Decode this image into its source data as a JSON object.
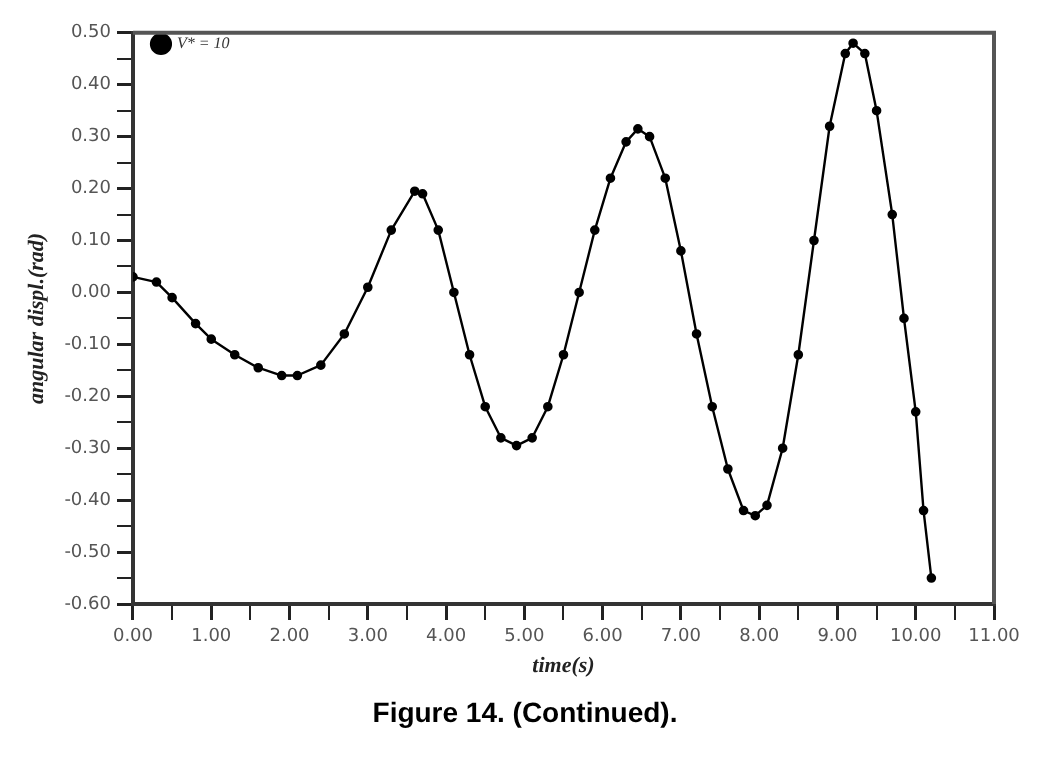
{
  "chart_data": {
    "type": "line",
    "xlabel": "time(s)",
    "ylabel": "angular displ.(rad)",
    "annotations": [
      "Figure 14. (Continued)."
    ],
    "series": [
      {
        "name": "V* = 10",
        "color": "#000000",
        "x": [
          0,
          0.3,
          0.5,
          0.8,
          1.0,
          1.3,
          1.6,
          1.9,
          2.1,
          2.4,
          2.7,
          3.0,
          3.3,
          3.6,
          3.7,
          3.9,
          4.1,
          4.3,
          4.5,
          4.7,
          4.9,
          5.1,
          5.3,
          5.5,
          5.7,
          5.9,
          6.1,
          6.3,
          6.45,
          6.6,
          6.8,
          7.0,
          7.2,
          7.4,
          7.6,
          7.8,
          7.95,
          8.1,
          8.3,
          8.5,
          8.7,
          8.9,
          9.1,
          9.2,
          9.35,
          9.5,
          9.7,
          9.85,
          10.0,
          10.1,
          10.2
        ],
        "values": [
          0.03,
          0.02,
          -0.01,
          -0.06,
          -0.09,
          -0.12,
          -0.145,
          -0.16,
          -0.16,
          -0.14,
          -0.08,
          0.01,
          0.12,
          0.195,
          0.19,
          0.12,
          0.0,
          -0.12,
          -0.22,
          -0.28,
          -0.295,
          -0.28,
          -0.22,
          -0.12,
          0.0,
          0.12,
          0.22,
          0.29,
          0.315,
          0.3,
          0.22,
          0.08,
          -0.08,
          -0.22,
          -0.34,
          -0.42,
          -0.43,
          -0.41,
          -0.3,
          -0.12,
          0.1,
          0.32,
          0.46,
          0.48,
          0.46,
          0.35,
          0.15,
          -0.05,
          -0.23,
          -0.42,
          -0.55
        ]
      }
    ],
    "xlim": [
      0,
      11
    ],
    "xticks": [
      {
        "value": 0,
        "label": "0.00"
      },
      {
        "value": 0.5,
        "label": null
      },
      {
        "value": 1,
        "label": "1.00"
      },
      {
        "value": 1.5,
        "label": null
      },
      {
        "value": 2,
        "label": "2.00"
      },
      {
        "value": 2.5,
        "label": null
      },
      {
        "value": 3,
        "label": "3.00"
      },
      {
        "value": 3.5,
        "label": null
      },
      {
        "value": 4,
        "label": "4.00"
      },
      {
        "value": 4.5,
        "label": null
      },
      {
        "value": 5,
        "label": "5.00"
      },
      {
        "value": 5.5,
        "label": null
      },
      {
        "value": 6,
        "label": "6.00"
      },
      {
        "value": 6.5,
        "label": null
      },
      {
        "value": 7,
        "label": "7.00"
      },
      {
        "value": 7.5,
        "label": null
      },
      {
        "value": 8,
        "label": "8.00"
      },
      {
        "value": 8.5,
        "label": null
      },
      {
        "value": 9,
        "label": "9.00"
      },
      {
        "value": 9.5,
        "label": null
      },
      {
        "value": 10,
        "label": "10.00"
      },
      {
        "value": 10.5,
        "label": null
      },
      {
        "value": 11,
        "label": "11.00"
      }
    ],
    "ylim": [
      -0.6,
      0.5
    ],
    "yticks": [
      {
        "value": -0.6,
        "label": "-0.60"
      },
      {
        "value": -0.55,
        "label": null
      },
      {
        "value": -0.5,
        "label": "-0.50"
      },
      {
        "value": -0.45,
        "label": null
      },
      {
        "value": -0.4,
        "label": "-0.40"
      },
      {
        "value": -0.35,
        "label": null
      },
      {
        "value": -0.3,
        "label": "-0.30"
      },
      {
        "value": -0.25,
        "label": null
      },
      {
        "value": -0.2,
        "label": "-0.20"
      },
      {
        "value": -0.15,
        "label": null
      },
      {
        "value": -0.1,
        "label": "-0.10"
      },
      {
        "value": -0.05,
        "label": null
      },
      {
        "value": 0,
        "label": "0.00"
      },
      {
        "value": 0.05,
        "label": null
      },
      {
        "value": 0.1,
        "label": "0.10"
      },
      {
        "value": 0.15,
        "label": null
      },
      {
        "value": 0.2,
        "label": "0.20"
      },
      {
        "value": 0.25,
        "label": null
      },
      {
        "value": 0.3,
        "label": "0.30"
      },
      {
        "value": 0.35,
        "label": null
      },
      {
        "value": 0.4,
        "label": "0.40"
      },
      {
        "value": 0.45,
        "label": null
      },
      {
        "value": 0.5,
        "label": "0.50"
      }
    ],
    "grid": false,
    "legend": "top left",
    "marker": "circle",
    "line_style": "solid"
  }
}
